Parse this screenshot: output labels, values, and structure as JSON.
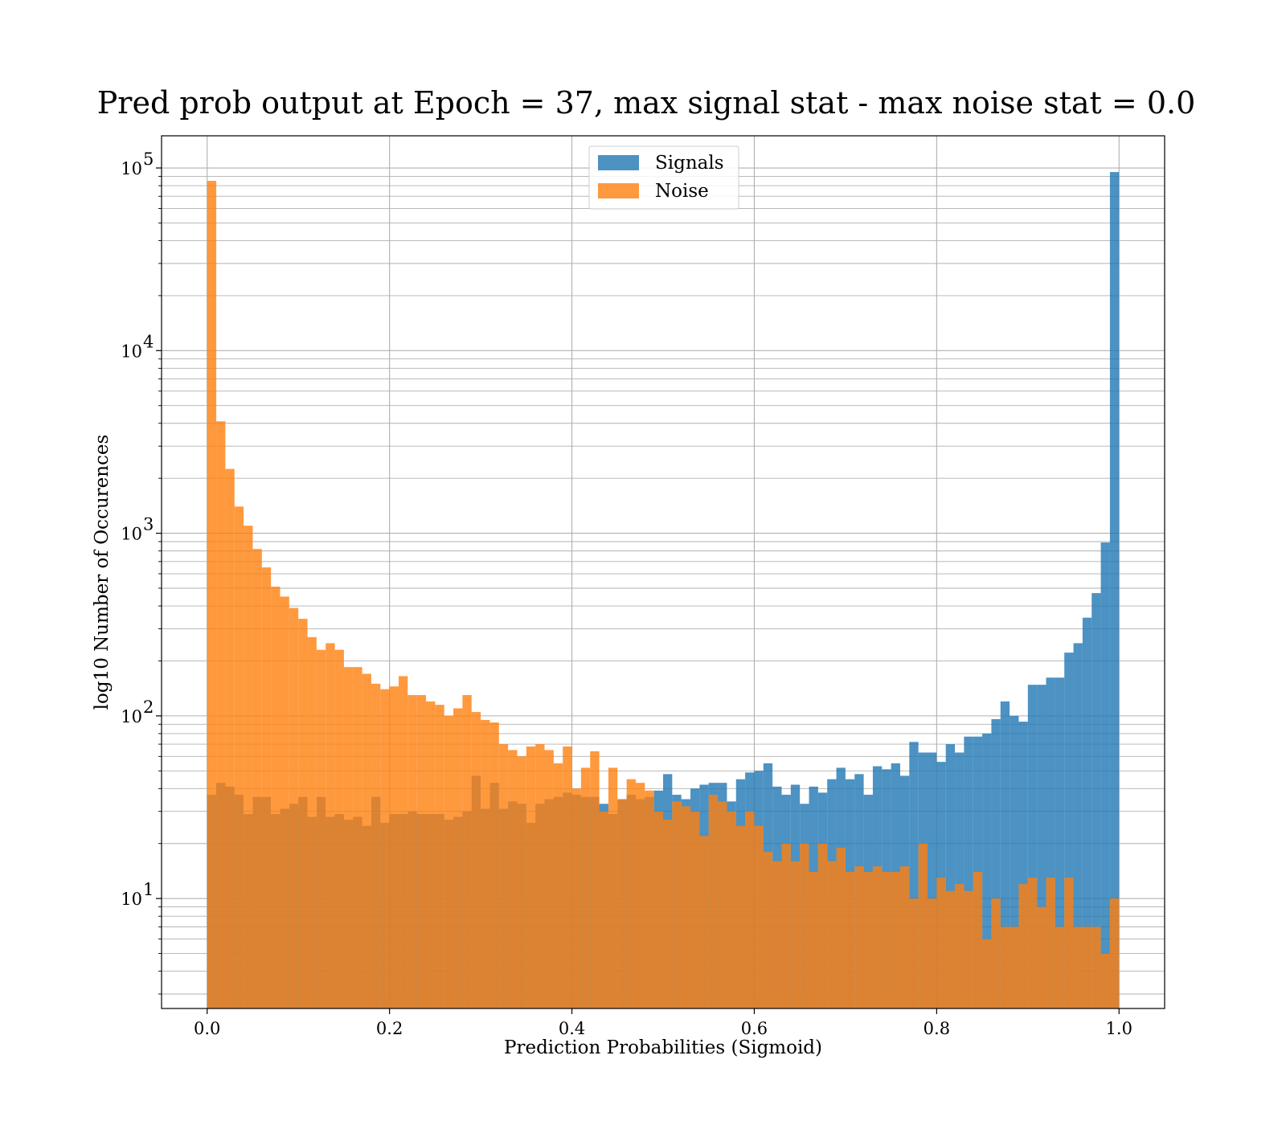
{
  "chart_data": {
    "type": "bar",
    "subtype": "histogram",
    "title": "Pred prob output at Epoch = 37, max signal stat - max noise stat = 0.0",
    "xlabel": "Prediction Probabilities (Sigmoid)",
    "ylabel": "log10 Number of Occurences",
    "xscale": "linear",
    "yscale": "log",
    "xlim": [
      -0.05,
      1.05
    ],
    "ylim": [
      2.5,
      150000
    ],
    "x_ticks": [
      0.0,
      0.2,
      0.4,
      0.6,
      0.8,
      1.0
    ],
    "x_tick_labels": [
      "0.0",
      "0.2",
      "0.4",
      "0.6",
      "0.8",
      "1.0"
    ],
    "y_ticks": [
      10,
      100,
      1000,
      10000,
      100000
    ],
    "y_tick_bases": [
      "10",
      "10",
      "10",
      "10",
      "10"
    ],
    "y_tick_exponents": [
      "1",
      "2",
      "3",
      "4",
      "5"
    ],
    "grid": {
      "major": true,
      "minor_y": true
    },
    "legend": {
      "position": "upper-center"
    },
    "bin_edges_start": 0.0,
    "bin_width": 0.01,
    "bin_count": 100,
    "series": [
      {
        "name": "Signals",
        "color": "#1f77b4",
        "opacity": 0.8,
        "values": [
          37,
          43,
          41,
          37,
          29,
          36,
          36,
          29,
          31,
          33,
          36,
          28,
          36,
          28,
          29,
          27,
          28,
          25,
          36,
          26,
          29,
          29,
          30,
          29,
          29,
          29,
          27,
          28,
          30,
          47,
          31,
          43,
          31,
          34,
          33,
          26,
          33,
          35,
          36,
          38,
          37,
          36,
          36,
          33,
          29,
          35,
          37,
          35,
          36,
          39,
          48,
          37,
          35,
          40,
          42,
          43,
          43,
          34,
          45,
          49,
          50,
          55,
          41,
          37,
          42,
          33,
          41,
          38,
          45,
          52,
          45,
          48,
          37,
          53,
          51,
          55,
          47,
          72,
          63,
          63,
          56,
          70,
          63,
          77,
          77,
          80,
          96,
          120,
          100,
          93,
          148,
          148,
          162,
          162,
          222,
          250,
          345,
          470,
          890,
          95000
        ]
      },
      {
        "name": "Noise",
        "color": "#ff7f0e",
        "opacity": 0.8,
        "values": [
          85000,
          4100,
          2250,
          1400,
          1100,
          820,
          650,
          510,
          450,
          390,
          340,
          270,
          230,
          250,
          230,
          185,
          185,
          170,
          150,
          140,
          145,
          165,
          130,
          130,
          120,
          115,
          100,
          110,
          130,
          105,
          95,
          92,
          70,
          65,
          60,
          68,
          70,
          65,
          55,
          68,
          40,
          52,
          64,
          30,
          52,
          35,
          45,
          43,
          39,
          30,
          27,
          34,
          32,
          30,
          22,
          37,
          34,
          30,
          25,
          30,
          25,
          18,
          16,
          20,
          16,
          20,
          14,
          20,
          16,
          19,
          14,
          15,
          14,
          15,
          14,
          14,
          15,
          10,
          20,
          10,
          13,
          11,
          12,
          11,
          14,
          6,
          10,
          7,
          7,
          12,
          13,
          9,
          13,
          7,
          13,
          7,
          7,
          7,
          5,
          10
        ]
      }
    ]
  }
}
